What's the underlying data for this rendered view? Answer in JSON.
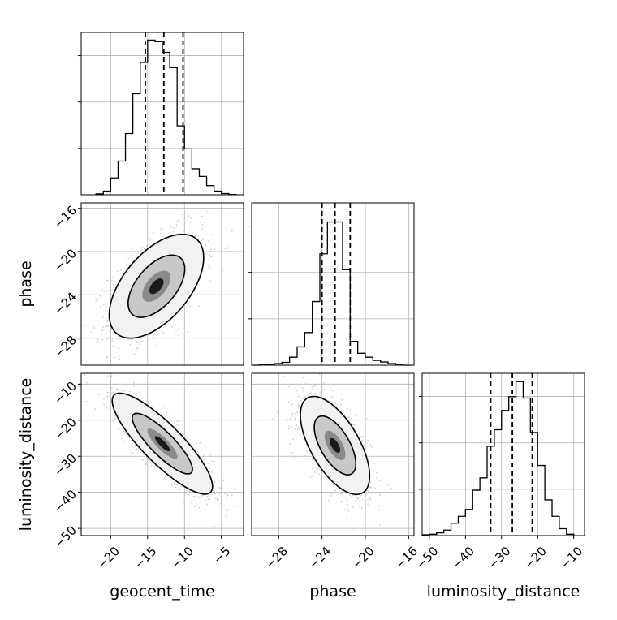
{
  "chart_data": {
    "type": "corner",
    "parameters": [
      {
        "key": "geocent_time",
        "label": "geocent_time",
        "range": [
          -24,
          -2
        ],
        "ticks": [
          -20,
          -15,
          -10,
          -5
        ],
        "tick_labels": [
          "−20",
          "−15",
          "−10",
          "−5"
        ]
      },
      {
        "key": "phase",
        "label": "phase",
        "range": [
          -30.5,
          -15.5
        ],
        "ticks": [
          -28,
          -24,
          -20,
          -16
        ],
        "tick_labels": [
          "−28",
          "−24",
          "−20",
          "−16"
        ]
      },
      {
        "key": "luminosity_distance",
        "label": "luminosity_distance",
        "range": [
          -52,
          -7
        ],
        "ticks": [
          -50,
          -40,
          -30,
          -20,
          -10
        ],
        "tick_labels": [
          "−50",
          "−40",
          "−30",
          "−20",
          "−10"
        ]
      }
    ],
    "histograms": [
      {
        "parameter": "geocent_time",
        "bin_edges": [
          -22,
          -21,
          -20,
          -19,
          -18,
          -17,
          -16,
          -15,
          -14,
          -13,
          -12,
          -11,
          -10,
          -9,
          -8,
          -7,
          -6,
          -5,
          -4,
          -3
        ],
        "counts": [
          3,
          12,
          55,
          110,
          200,
          330,
          432,
          505,
          500,
          465,
          415,
          225,
          150,
          85,
          60,
          30,
          12,
          4,
          1
        ],
        "quantiles": [
          -15.3,
          -12.8,
          -10.2
        ],
        "ymax": 530
      },
      {
        "parameter": "phase",
        "bin_edges": [
          -30.5,
          -29.8,
          -29.1,
          -28.4,
          -27.7,
          -27.0,
          -26.3,
          -25.6,
          -24.9,
          -24.2,
          -23.5,
          -22.8,
          -22.1,
          -21.4,
          -20.7,
          -20.0,
          -19.3,
          -18.6,
          -17.9,
          -17.2,
          -16.5,
          -15.8
        ],
        "counts": [
          0,
          3,
          6,
          10,
          18,
          50,
          115,
          205,
          400,
          700,
          900,
          900,
          600,
          150,
          75,
          50,
          30,
          20,
          10,
          3,
          0
        ],
        "quantiles": [
          -24.0,
          -22.8,
          -21.4
        ],
        "ymax": 1020
      },
      {
        "parameter": "luminosity_distance",
        "bin_edges": [
          -52,
          -50,
          -48,
          -46,
          -44,
          -42,
          -40,
          -38,
          -36,
          -34,
          -32,
          -30,
          -28,
          -26,
          -24,
          -22,
          -20,
          -18,
          -16,
          -14,
          -12,
          -10
        ],
        "counts": [
          3,
          5,
          10,
          20,
          45,
          70,
          95,
          165,
          210,
          325,
          385,
          455,
          505,
          560,
          500,
          375,
          255,
          130,
          70,
          25,
          5
        ],
        "quantiles": [
          -33.0,
          -27.0,
          -21.5
        ],
        "ymax": 590
      }
    ],
    "pairs": [
      {
        "x": "geocent_time",
        "y": "phase",
        "center": [
          -13.8,
          -23.2
        ],
        "sd": [
          3.2,
          2.4
        ],
        "rho": 0.55
      },
      {
        "x": "geocent_time",
        "y": "luminosity_distance",
        "center": [
          -13.0,
          -26.5
        ],
        "sd": [
          3.4,
          7.0
        ],
        "rho": -0.85
      },
      {
        "x": "phase",
        "y": "luminosity_distance",
        "center": [
          -22.8,
          -27.0
        ],
        "sd": [
          1.6,
          6.8
        ],
        "rho": -0.62
      }
    ],
    "axis_labels": {
      "bottom": [
        "geocent_time",
        "phase",
        "luminosity_distance"
      ],
      "left": [
        "",
        "phase",
        "luminosity_distance"
      ]
    },
    "grid": true,
    "line_color": "#000000",
    "grid_color": "#b0b0b0",
    "point_color": "#bdbdbd"
  }
}
